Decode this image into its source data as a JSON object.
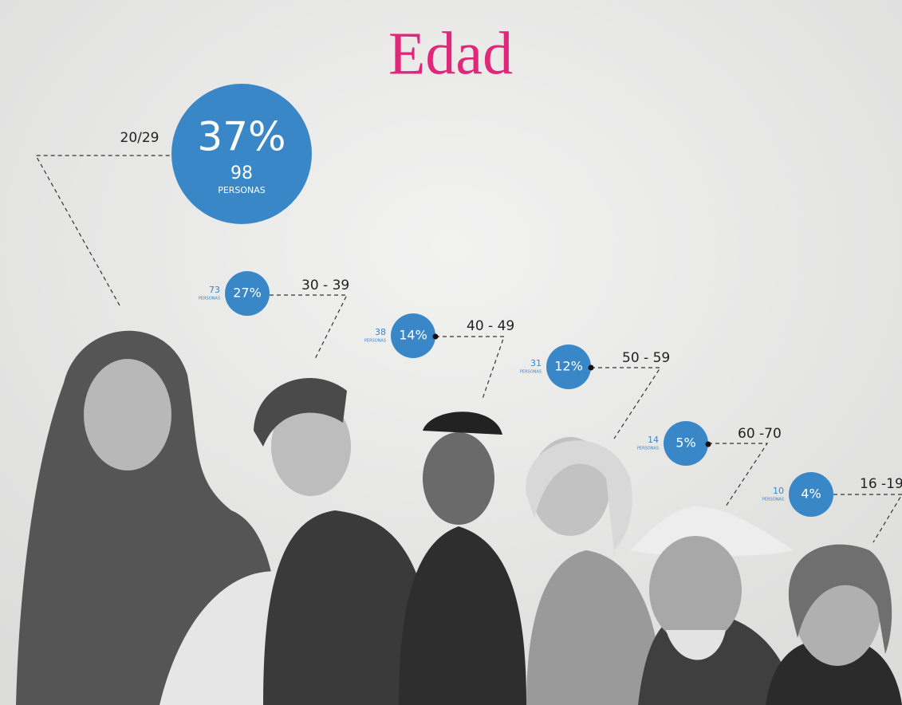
{
  "title": "Edad",
  "groups": [
    {
      "range": "20/29",
      "percent": "37%",
      "count": "98",
      "unit": "PERSONAS"
    },
    {
      "range": "30 - 39",
      "percent": "27%",
      "count": "73",
      "unit": "PERSONAS"
    },
    {
      "range": "40 - 49",
      "percent": "14%",
      "count": "38",
      "unit": "PERSONAS"
    },
    {
      "range": "50 - 59",
      "percent": "12%",
      "count": "31",
      "unit": "PERSONAS"
    },
    {
      "range": "60 -70",
      "percent": "5%",
      "count": "14",
      "unit": "PERSONAS"
    },
    {
      "range": "16 -19",
      "percent": "4%",
      "count": "10",
      "unit": "PERSONAS"
    }
  ]
}
